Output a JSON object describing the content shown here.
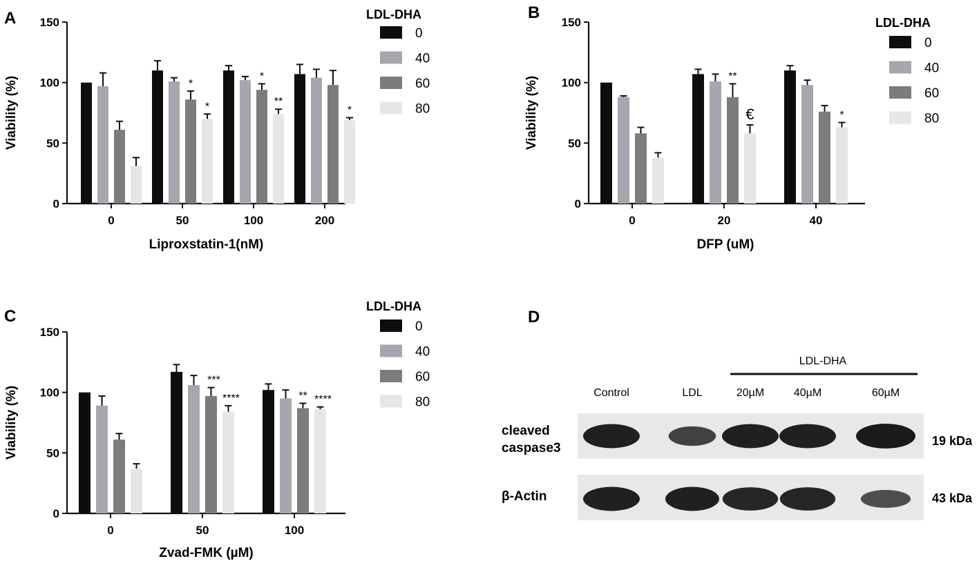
{
  "colors": {
    "series": [
      "#0d0d0d",
      "#a6a6ae",
      "#7c7c7c",
      "#e6e6e6"
    ],
    "axis": "#111111",
    "blot_bg": "#e8e8e8",
    "band": "#1a1a1a"
  },
  "chart_data": [
    {
      "panel": "A",
      "type": "bar",
      "xlabel": "Liproxstatin-1(nM)",
      "ylabel": "Viability (%)",
      "ylim": [
        0,
        150
      ],
      "yticks": [
        "0",
        "50",
        "100",
        "150"
      ],
      "categories": [
        "0",
        "50",
        "100",
        "200"
      ],
      "legend_title": "LDL-DHA",
      "legend_placement": "right",
      "series": [
        {
          "name": "0",
          "values": [
            100,
            110,
            110,
            107
          ],
          "errors": [
            0,
            8,
            4,
            8
          ]
        },
        {
          "name": "40",
          "values": [
            97,
            101,
            102,
            104
          ],
          "errors": [
            11,
            3,
            3,
            7
          ]
        },
        {
          "name": "60",
          "values": [
            61,
            86,
            94,
            98
          ],
          "errors": [
            7,
            7,
            5,
            12
          ]
        },
        {
          "name": "80",
          "values": [
            31,
            70,
            74,
            69
          ],
          "errors": [
            7,
            4,
            4,
            2
          ]
        }
      ],
      "annotations": [
        {
          "category": "50",
          "series": "60",
          "text": "*"
        },
        {
          "category": "50",
          "series": "80",
          "text": "*"
        },
        {
          "category": "100",
          "series": "60",
          "text": "*"
        },
        {
          "category": "100",
          "series": "80",
          "text": "**"
        },
        {
          "category": "200",
          "series": "80",
          "text": "*"
        }
      ]
    },
    {
      "panel": "B",
      "type": "bar",
      "xlabel": "DFP (uM)",
      "ylabel": "Viability (%)",
      "ylim": [
        0,
        150
      ],
      "yticks": [
        "0",
        "50",
        "100",
        "150"
      ],
      "categories": [
        "0",
        "20",
        "40"
      ],
      "legend_title": "LDL-DHA",
      "legend_placement": "right",
      "series": [
        {
          "name": "0",
          "values": [
            100,
            107,
            110
          ],
          "errors": [
            0,
            4,
            4
          ]
        },
        {
          "name": "40",
          "values": [
            88,
            101,
            98
          ],
          "errors": [
            1,
            6,
            4
          ]
        },
        {
          "name": "60",
          "values": [
            58,
            88,
            76
          ],
          "errors": [
            5,
            11,
            5
          ]
        },
        {
          "name": "80",
          "values": [
            38,
            58,
            63
          ],
          "errors": [
            4,
            7,
            4
          ]
        }
      ],
      "annotations": [
        {
          "category": "20",
          "series": "60",
          "text": "**"
        },
        {
          "category": "20",
          "series": "80",
          "text": "€"
        },
        {
          "category": "40",
          "series": "80",
          "text": "*"
        }
      ]
    },
    {
      "panel": "C",
      "type": "bar",
      "xlabel": "Zvad-FMK (µM)",
      "ylabel": "Viability (%)",
      "ylim": [
        0,
        150
      ],
      "yticks": [
        "0",
        "50",
        "100",
        "150"
      ],
      "categories": [
        "0",
        "50",
        "100"
      ],
      "legend_title": "LDL-DHA",
      "legend_placement": "right",
      "series": [
        {
          "name": "0",
          "values": [
            100,
            117,
            102
          ],
          "errors": [
            0,
            6,
            5
          ]
        },
        {
          "name": "40",
          "values": [
            89,
            106,
            95
          ],
          "errors": [
            8,
            8,
            7
          ]
        },
        {
          "name": "60",
          "values": [
            61,
            97,
            87
          ],
          "errors": [
            5,
            7,
            4
          ]
        },
        {
          "name": "80",
          "values": [
            37,
            84,
            86
          ],
          "errors": [
            4,
            5,
            2
          ]
        }
      ],
      "annotations": [
        {
          "category": "50",
          "series": "60",
          "text": "***"
        },
        {
          "category": "50",
          "series": "80",
          "text": "****"
        },
        {
          "category": "100",
          "series": "60",
          "text": "**"
        },
        {
          "category": "100",
          "series": "80",
          "text": "****"
        }
      ]
    }
  ],
  "blot": {
    "panel": "D",
    "group_label": "LDL-DHA",
    "lanes": [
      "Control",
      "LDL",
      "20µM",
      "40µM",
      "60µM"
    ],
    "rows": [
      {
        "label_lines": [
          "cleaved",
          "caspase3"
        ],
        "size": "19 kDa",
        "intensity": [
          0.95,
          0.65,
          0.95,
          0.95,
          1.0
        ]
      },
      {
        "label_lines": [
          "β-Actin"
        ],
        "size": "43 kDa",
        "intensity": [
          0.95,
          0.95,
          0.9,
          0.9,
          0.55
        ]
      }
    ]
  }
}
